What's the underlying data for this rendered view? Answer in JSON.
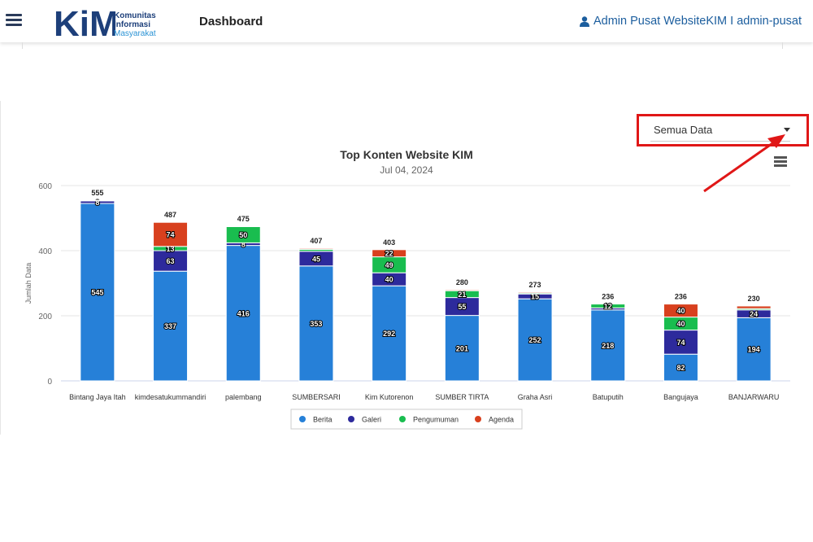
{
  "header": {
    "logo_letters": "KiM",
    "logo_line1": "Komunitas",
    "logo_line2": "Informasi",
    "logo_line3": "Masyarakat",
    "page_title": "Dashboard",
    "user_label": "Admin Pusat WebsiteKIM I admin-pusat"
  },
  "filter": {
    "selected": "Semua Data"
  },
  "colors": {
    "berita": "#2680d8",
    "galeri": "#2d2a9c",
    "pengumuman": "#19bd4f",
    "agenda": "#d8401e",
    "brand_dark": "#1d3f7a",
    "brand_light": "#2a93d5",
    "highlight": "#e01717"
  },
  "icons": [
    "hamburger-icon",
    "user-icon",
    "chart-menu-icon",
    "chevron-down-icon"
  ],
  "chart_data": {
    "type": "bar",
    "stacked": true,
    "title": "Top Konten Website KIM",
    "subtitle": "Jul 04, 2024",
    "ylabel": "Jumlah Data",
    "ylim": [
      0,
      600
    ],
    "yticks": [
      0,
      200,
      400,
      600
    ],
    "grid": true,
    "legend_position": "bottom-center",
    "categories": [
      "Bintang Jaya Itah",
      "kimdesatukummandiri",
      "palembang",
      "SUMBERSARI",
      "Kim Kutorenon",
      "SUMBER TIRTA",
      "Graha Asri",
      "Batuputih",
      "Bangujaya",
      "BANJARWARU"
    ],
    "totals": [
      555,
      487,
      475,
      407,
      403,
      280,
      273,
      236,
      236,
      230
    ],
    "series": [
      {
        "name": "Berita",
        "color": "#2680d8",
        "values": [
          545,
          337,
          416,
          353,
          292,
          201,
          252,
          218,
          82,
          194
        ]
      },
      {
        "name": "Galeri",
        "color": "#2d2a9c",
        "values": [
          8,
          63,
          8,
          45,
          40,
          55,
          15,
          6,
          74,
          24
        ]
      },
      {
        "name": "Pengumuman",
        "color": "#19bd4f",
        "values": [
          1,
          13,
          50,
          6,
          49,
          21,
          3,
          12,
          40,
          4
        ]
      },
      {
        "name": "Agenda",
        "color": "#d8401e",
        "values": [
          1,
          74,
          1,
          3,
          22,
          3,
          3,
          0,
          40,
          8
        ]
      }
    ],
    "shown_labels": [
      [
        "545",
        "8",
        "",
        ""
      ],
      [
        "337",
        "63",
        "13",
        "74"
      ],
      [
        "416",
        "8",
        "50",
        ""
      ],
      [
        "353",
        "45",
        "",
        ""
      ],
      [
        "292",
        "40",
        "49",
        "22"
      ],
      [
        "201",
        "55",
        "21",
        ""
      ],
      [
        "252",
        "15",
        "",
        ""
      ],
      [
        "218",
        "",
        "12",
        ""
      ],
      [
        "82",
        "74",
        "40",
        "40"
      ],
      [
        "194",
        "24",
        "",
        ""
      ]
    ]
  }
}
